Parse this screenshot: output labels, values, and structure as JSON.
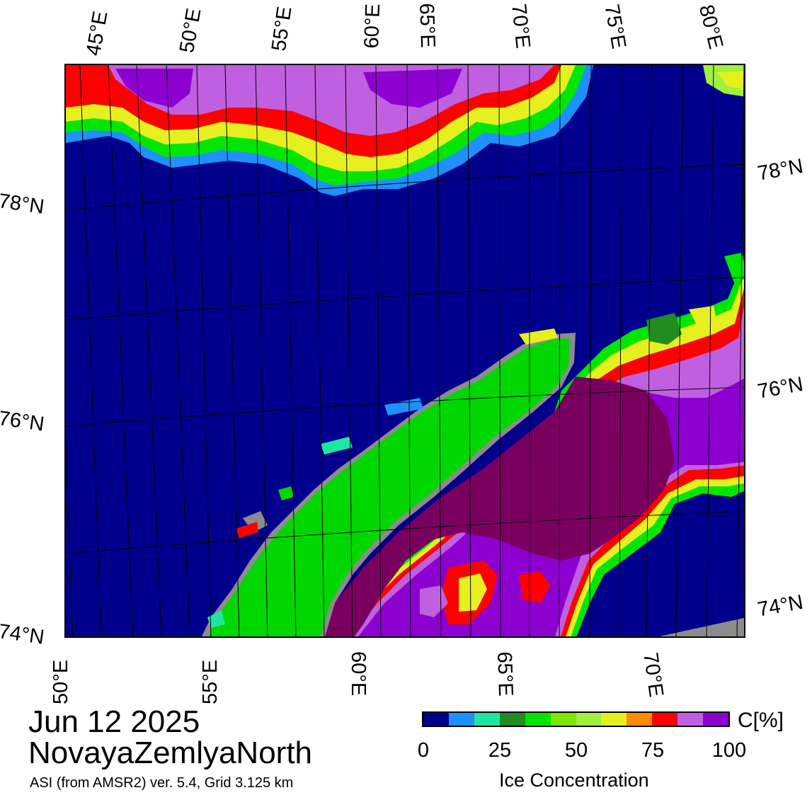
{
  "map": {
    "top_lon_labels": [
      "45°E",
      "50°E",
      "55°E",
      "60°E",
      "65°E",
      "70°E",
      "75°E",
      "80°E"
    ],
    "bottom_lon_labels": [
      "50°E",
      "55°E",
      "60°E",
      "65°E",
      "70°E"
    ],
    "left_lat_labels": [
      "78°N",
      "76°N",
      "74°N"
    ],
    "right_lat_labels": [
      "78°N",
      "76°N",
      "74°N"
    ]
  },
  "title": {
    "date": "Jun 12 2025",
    "region": "NovayaZemlyaNorth",
    "subtitle": "ASI (from AMSR2) ver. 5.4,  Grid 3.125 km"
  },
  "colorbar": {
    "ticks": [
      "0",
      "25",
      "50",
      "75",
      "100"
    ],
    "unit": "C[%]",
    "label": "Ice Concentration",
    "colors": [
      "#00008c",
      "#1e90ff",
      "#1ee6a0",
      "#228b22",
      "#00e600",
      "#7fe600",
      "#a0f040",
      "#e6f01e",
      "#ff8c00",
      "#ff0000",
      "#c060e0",
      "#8c00d0"
    ]
  },
  "palette": {
    "water": "#00008c",
    "land": "#00d700",
    "land_mask": "#8c8c8c",
    "ice_high": "#7a0060",
    "ice_purple": "#9a2bd2"
  }
}
